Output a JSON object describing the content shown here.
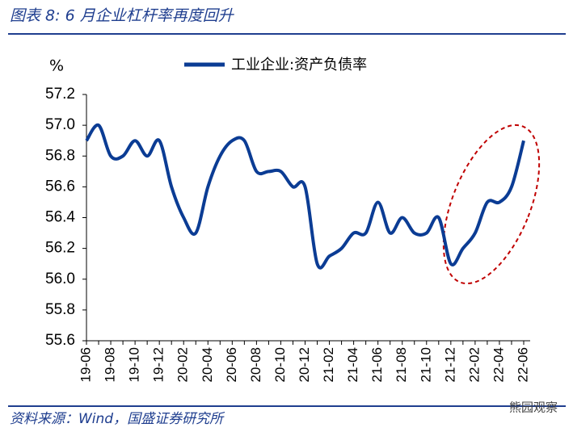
{
  "chart_data": {
    "type": "line",
    "title": "图表 8:  6 月企业杠杆率再度回升",
    "ylabel": "%",
    "source": "资料来源：Wind，国盛证券研究所",
    "watermark": "熊园观察",
    "categories": [
      "19-06",
      null,
      "19-08",
      null,
      "19-10",
      null,
      "19-12",
      null,
      "20-02",
      null,
      "20-04",
      null,
      "20-06",
      null,
      "20-08",
      null,
      "20-10",
      null,
      "20-12",
      null,
      "21-02",
      null,
      "21-04",
      null,
      "21-06",
      null,
      "21-08",
      null,
      "21-10",
      null,
      "21-12",
      null,
      "22-02",
      null,
      "22-04",
      null,
      "22-06"
    ],
    "series": [
      {
        "name": "工业企业:资产负债率",
        "color": "#0b3c94",
        "values": [
          56.9,
          57.0,
          56.8,
          56.8,
          56.9,
          56.8,
          56.9,
          56.6,
          56.4,
          56.3,
          56.6,
          56.8,
          56.9,
          56.9,
          56.7,
          56.7,
          56.7,
          56.6,
          56.6,
          56.1,
          56.15,
          56.2,
          56.3,
          56.3,
          56.5,
          56.3,
          56.4,
          56.3,
          56.3,
          56.4,
          56.1,
          56.2,
          56.3,
          56.5,
          56.5,
          56.6,
          56.9
        ]
      }
    ],
    "ylim": [
      55.6,
      57.2
    ],
    "yticks": [
      55.6,
      55.8,
      {
        "value": 56,
        "label": "56.0"
      },
      56.2,
      56.4,
      56.6,
      56.8,
      {
        "value": 57,
        "label": "57.0"
      },
      57.2
    ],
    "grid": false,
    "legend": "top"
  }
}
